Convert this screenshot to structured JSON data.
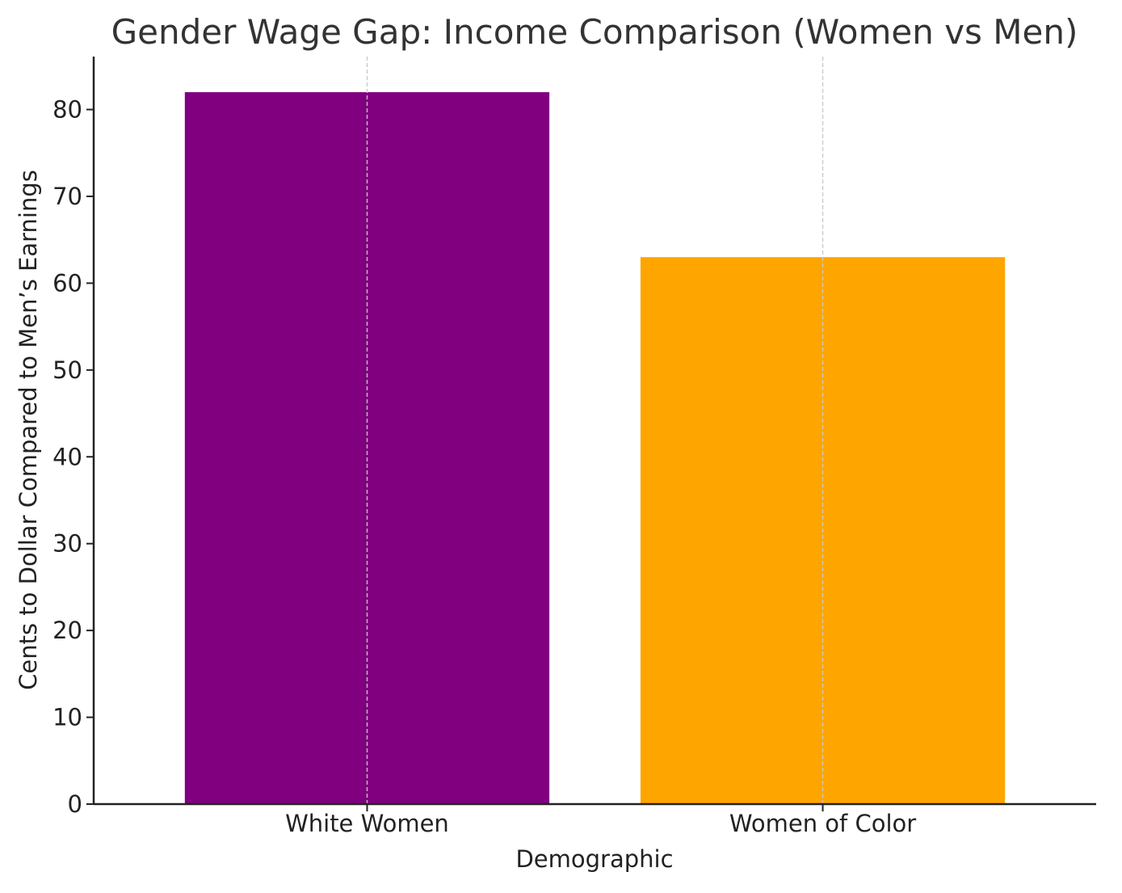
{
  "chart_data": {
    "type": "bar",
    "title": "Gender Wage Gap: Income Comparison (Women vs Men)",
    "xlabel": "Demographic",
    "ylabel": "Cents to Dollar Compared to Men’s Earnings",
    "categories": [
      "White Women",
      "Women of Color"
    ],
    "values": [
      82,
      63
    ],
    "colors": [
      "#800080",
      "#FFA500"
    ],
    "ylim": [
      0,
      86.1
    ],
    "yticks": [
      0,
      10,
      20,
      30,
      40,
      50,
      60,
      70,
      80
    ],
    "grid": "x-dashed",
    "legend": "none"
  }
}
